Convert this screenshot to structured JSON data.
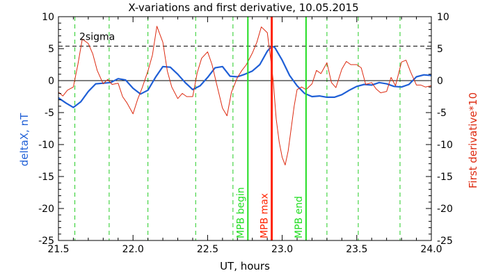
{
  "chart_data": {
    "type": "line",
    "title": "X-variations and first derivative, 10.05.2015",
    "xlabel": "UT, hours",
    "ylabel_left": "deltaX, nT",
    "ylabel_right": "First derivative*10",
    "xlim": [
      21.5,
      24.0
    ],
    "ylim": [
      -25,
      10
    ],
    "x_ticks": [
      "21.5",
      "22.0",
      "22.5",
      "23.0",
      "23.5",
      "24.0"
    ],
    "y_ticks_left": [
      "10",
      "5",
      "0",
      "-5",
      "-10",
      "-15",
      "-20",
      "-25"
    ],
    "y_ticks_right": [
      "10",
      "5",
      "0",
      "-5",
      "-10",
      "-15",
      "-20",
      "-25"
    ],
    "grid": false,
    "colors": {
      "deltaX": "#1f5fd6",
      "derivative": "#dd2a10",
      "mpb_begin_end": "#22dd22",
      "mpb_max": "#ff2200",
      "sigma_line": "#000000",
      "zero_line": "#000000",
      "vertical_dashed": "#22cc22"
    },
    "sigma_level": 5.4,
    "sigma_label": "2sigma",
    "zero_level": 0,
    "vertical_dashed_lines": [
      21.61,
      21.84,
      22.1,
      22.42,
      22.67,
      23.3,
      23.51,
      23.79
    ],
    "markers": [
      {
        "label": "MPB begin",
        "x": 22.77
      },
      {
        "label": "MPB max",
        "x": 22.93
      },
      {
        "label": "MPB end",
        "x": 23.16
      }
    ],
    "series": [
      {
        "key": "deltaX",
        "x": [
          21.5,
          21.55,
          21.6,
          21.65,
          21.7,
          21.75,
          21.8,
          21.85,
          21.9,
          21.95,
          22.0,
          22.05,
          22.1,
          22.15,
          22.2,
          22.25,
          22.3,
          22.35,
          22.4,
          22.45,
          22.5,
          22.55,
          22.6,
          22.65,
          22.7,
          22.75,
          22.8,
          22.85,
          22.9,
          22.93,
          22.95,
          23.0,
          23.05,
          23.1,
          23.15,
          23.2,
          23.25,
          23.3,
          23.35,
          23.4,
          23.45,
          23.5,
          23.55,
          23.6,
          23.65,
          23.7,
          23.75,
          23.8,
          23.85,
          23.9,
          23.95,
          24.0
        ],
        "y": [
          -2.7,
          -3.5,
          -4.2,
          -3.3,
          -1.7,
          -0.5,
          -0.4,
          -0.3,
          0.3,
          0.1,
          -1.2,
          -2.1,
          -1.5,
          0.5,
          2.2,
          2.1,
          1.0,
          -0.3,
          -1.4,
          -0.8,
          0.5,
          2.0,
          2.2,
          0.7,
          0.6,
          1.0,
          1.5,
          2.5,
          4.6,
          5.4,
          5.2,
          3.2,
          0.8,
          -0.8,
          -2.0,
          -2.5,
          -2.4,
          -2.6,
          -2.6,
          -2.2,
          -1.5,
          -0.9,
          -0.6,
          -0.7,
          -0.3,
          -0.5,
          -0.9,
          -1.0,
          -0.6,
          0.6,
          0.9,
          0.8
        ]
      },
      {
        "key": "derivative",
        "x": [
          21.5,
          21.53,
          21.56,
          21.6,
          21.63,
          21.66,
          21.7,
          21.73,
          21.76,
          21.8,
          21.83,
          21.86,
          21.9,
          21.93,
          21.96,
          22.0,
          22.03,
          22.06,
          22.1,
          22.13,
          22.16,
          22.2,
          22.23,
          22.26,
          22.3,
          22.33,
          22.36,
          22.4,
          22.43,
          22.46,
          22.5,
          22.53,
          22.56,
          22.6,
          22.63,
          22.66,
          22.7,
          22.73,
          22.76,
          22.8,
          22.83,
          22.86,
          22.9,
          22.92,
          22.94,
          22.96,
          22.98,
          23.0,
          23.02,
          23.04,
          23.06,
          23.08,
          23.1,
          23.13,
          23.16,
          23.2,
          23.23,
          23.26,
          23.3,
          23.33,
          23.36,
          23.4,
          23.43,
          23.46,
          23.5,
          23.53,
          23.56,
          23.6,
          23.63,
          23.66,
          23.7,
          23.73,
          23.76,
          23.8,
          23.83,
          23.86,
          23.9,
          23.93,
          23.96,
          24.0
        ],
        "y": [
          -1.8,
          -2.4,
          -1.5,
          -1.0,
          2.5,
          6.5,
          5.8,
          4.2,
          1.6,
          -0.5,
          0.2,
          -0.6,
          -0.4,
          -2.5,
          -3.5,
          -5.2,
          -3.0,
          -1.2,
          1.5,
          4.0,
          8.5,
          6.0,
          1.5,
          -1.0,
          -2.8,
          -2.0,
          -2.5,
          -2.5,
          1.2,
          3.5,
          4.5,
          2.5,
          -0.5,
          -4.3,
          -5.5,
          -1.8,
          0.5,
          1.6,
          2.5,
          4.3,
          6.0,
          8.4,
          7.5,
          4.0,
          0.0,
          -6.0,
          -9.6,
          -12.0,
          -13.2,
          -11.0,
          -7.5,
          -4.0,
          -1.4,
          -1.0,
          -1.4,
          -0.5,
          1.6,
          1.1,
          2.8,
          -0.3,
          -1.1,
          1.8,
          3.0,
          2.5,
          2.5,
          2.0,
          -0.6,
          -0.3,
          -1.3,
          -1.9,
          -1.7,
          0.5,
          -0.8,
          2.9,
          3.2,
          1.4,
          -0.7,
          -0.7,
          -1.0,
          -0.8
        ]
      }
    ]
  }
}
